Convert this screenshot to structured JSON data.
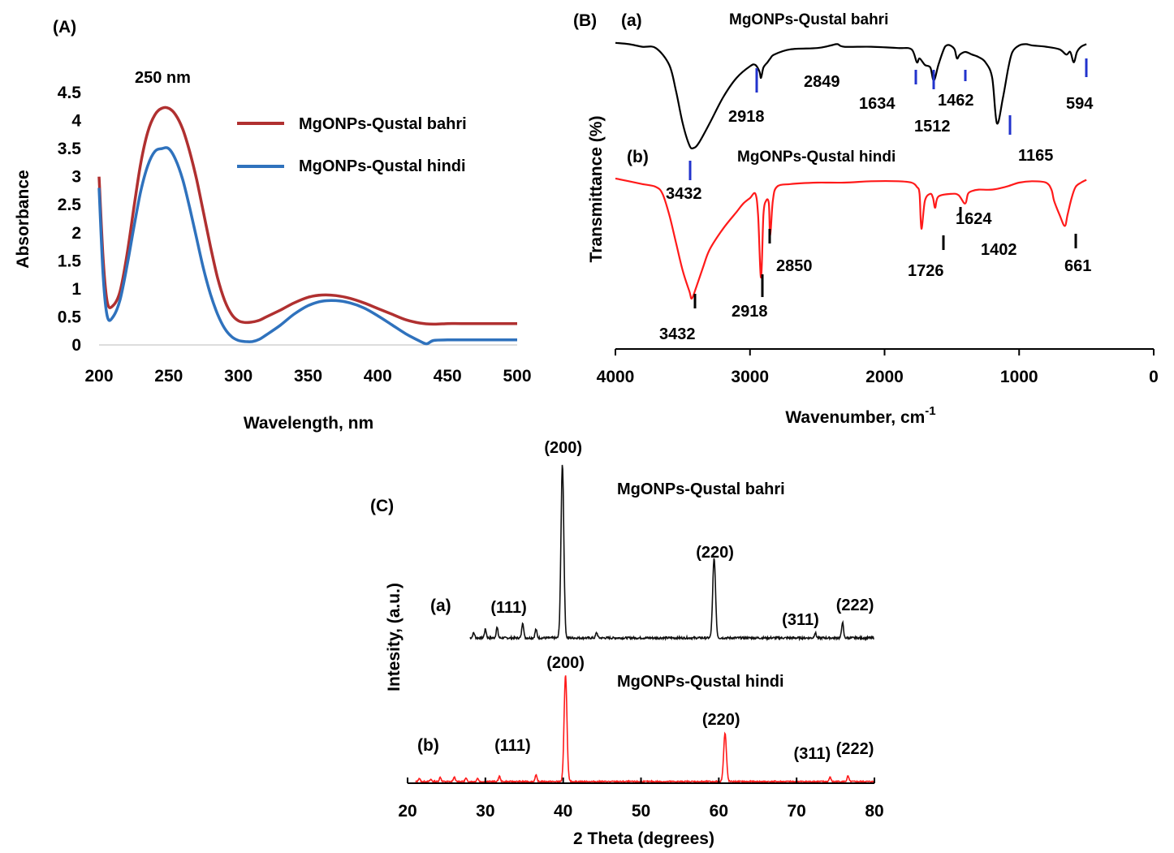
{
  "colors": {
    "uv_bahri": "#b03030",
    "uv_hindi": "#2f72bd",
    "ftir_a": "#000000",
    "ftir_b": "#ff1a1a",
    "ftir_marker_a": "#2233cc",
    "xrd_a": "#111111",
    "xrd_b": "#ff1a1a"
  },
  "chart_data": [
    {
      "panel": "(A)",
      "type": "line",
      "xlabel": "Wavelength, nm",
      "ylabel": "Absorbance",
      "xlim": [
        200,
        500
      ],
      "ylim": [
        0,
        4.5
      ],
      "x_ticks": [
        "200",
        "250",
        "300",
        "350",
        "400",
        "450",
        "500"
      ],
      "y_ticks": [
        "0",
        "0.5",
        "1",
        "1.5",
        "2",
        "2.5",
        "3",
        "3.5",
        "4",
        "4.5"
      ],
      "annotation": "250 nm",
      "legend_position": "top-right",
      "series": [
        {
          "name": "MgONPs-Qustal bahri",
          "x": [
            200,
            203,
            206,
            210,
            215,
            220,
            225,
            230,
            235,
            240,
            245,
            250,
            255,
            260,
            265,
            270,
            275,
            280,
            285,
            290,
            295,
            300,
            305,
            310,
            315,
            320,
            330,
            340,
            350,
            360,
            370,
            380,
            390,
            400,
            410,
            420,
            430,
            440,
            450,
            460,
            480,
            500
          ],
          "y": [
            3.0,
            1.5,
            0.75,
            0.7,
            0.95,
            1.6,
            2.45,
            3.25,
            3.8,
            4.1,
            4.22,
            4.22,
            4.1,
            3.85,
            3.45,
            2.95,
            2.35,
            1.75,
            1.2,
            0.8,
            0.55,
            0.43,
            0.4,
            0.41,
            0.44,
            0.5,
            0.62,
            0.75,
            0.85,
            0.89,
            0.88,
            0.83,
            0.75,
            0.65,
            0.55,
            0.45,
            0.39,
            0.37,
            0.38,
            0.38,
            0.38,
            0.38
          ]
        },
        {
          "name": "MgONPs-Qustal hindi",
          "x": [
            200,
            203,
            206,
            210,
            215,
            220,
            225,
            230,
            235,
            240,
            245,
            250,
            255,
            260,
            265,
            270,
            275,
            280,
            285,
            290,
            295,
            300,
            305,
            310,
            315,
            320,
            330,
            340,
            350,
            360,
            370,
            380,
            390,
            400,
            410,
            420,
            430,
            435,
            440,
            450,
            460,
            480,
            500
          ],
          "y": [
            2.8,
            1.2,
            0.5,
            0.5,
            0.8,
            1.4,
            2.1,
            2.75,
            3.2,
            3.45,
            3.5,
            3.5,
            3.3,
            2.95,
            2.45,
            1.9,
            1.35,
            0.9,
            0.55,
            0.3,
            0.15,
            0.08,
            0.06,
            0.06,
            0.1,
            0.18,
            0.35,
            0.55,
            0.7,
            0.78,
            0.79,
            0.75,
            0.66,
            0.52,
            0.36,
            0.2,
            0.07,
            0.02,
            0.08,
            0.09,
            0.09,
            0.09,
            0.09
          ]
        }
      ]
    },
    {
      "panel": "(B)",
      "type": "line",
      "xlabel": "Wavenumber, cm",
      "xlabel_superscript": "-1",
      "ylabel": "Transmittance (%)",
      "xlim": [
        4000,
        0
      ],
      "x_ticks": [
        "4000",
        "3000",
        "2000",
        "1000",
        "0"
      ],
      "series": [
        {
          "name": "MgONPs-Qustal bahri",
          "tag": "(a)",
          "x": [
            4000,
            3900,
            3800,
            3700,
            3600,
            3550,
            3500,
            3450,
            3420,
            3380,
            3300,
            3200,
            3100,
            3000,
            2960,
            2930,
            2918,
            2900,
            2870,
            2849,
            2820,
            2700,
            2500,
            2400,
            2350,
            2300,
            2100,
            1900,
            1800,
            1760,
            1740,
            1700,
            1660,
            1634,
            1600,
            1560,
            1540,
            1512,
            1480,
            1462,
            1440,
            1400,
            1350,
            1300,
            1250,
            1200,
            1165,
            1120,
            1080,
            1050,
            1000,
            950,
            900,
            800,
            700,
            650,
            620,
            594,
            570,
            540,
            500
          ],
          "y": [
            97,
            96,
            94,
            93,
            80,
            60,
            35,
            18,
            16,
            20,
            35,
            55,
            70,
            79,
            80,
            75,
            70,
            78,
            82,
            85,
            88,
            92,
            93,
            95,
            96,
            94,
            94,
            93,
            92,
            82,
            85,
            80,
            78,
            68,
            80,
            92,
            95,
            95,
            92,
            85,
            88,
            90,
            88,
            86,
            82,
            70,
            35,
            55,
            78,
            90,
            95,
            96,
            95,
            94,
            92,
            88,
            90,
            82,
            90,
            94,
            96
          ]
        },
        {
          "name": "MgONPs-Qustal hindi",
          "tag": "(b)",
          "x": [
            4000,
            3900,
            3800,
            3700,
            3650,
            3600,
            3550,
            3500,
            3450,
            3432,
            3400,
            3350,
            3300,
            3200,
            3100,
            3050,
            3000,
            2960,
            2940,
            2918,
            2900,
            2880,
            2860,
            2850,
            2830,
            2800,
            2700,
            2500,
            2300,
            2100,
            1900,
            1800,
            1760,
            1740,
            1726,
            1700,
            1660,
            1640,
            1624,
            1600,
            1500,
            1450,
            1402,
            1380,
            1350,
            1300,
            1200,
            1100,
            1000,
            900,
            800,
            760,
            740,
            700,
            661,
            640,
            610,
            580,
            540,
            500
          ],
          "y": [
            96,
            94,
            92,
            90,
            85,
            70,
            50,
            30,
            15,
            10,
            18,
            32,
            45,
            60,
            72,
            78,
            82,
            85,
            70,
            25,
            70,
            80,
            78,
            55,
            80,
            90,
            92,
            93,
            93,
            94,
            94,
            93,
            90,
            85,
            60,
            80,
            85,
            82,
            75,
            83,
            85,
            84,
            78,
            85,
            87,
            88,
            88,
            90,
            93,
            94,
            93,
            88,
            80,
            70,
            62,
            70,
            82,
            90,
            93,
            95
          ]
        }
      ],
      "peaks_a": [
        "3432",
        "2918",
        "2849",
        "1634",
        "1512",
        "1462",
        "1165",
        "594"
      ],
      "peaks_b": [
        "3432",
        "2918",
        "2850",
        "1726",
        "1624",
        "1402",
        "661"
      ]
    },
    {
      "panel": "(C)",
      "type": "line",
      "xlabel": "2 Theta (degrees)",
      "ylabel": "Intesity, (a.u.)",
      "xlim": [
        20,
        80
      ],
      "x_ticks": [
        "20",
        "30",
        "40",
        "50",
        "60",
        "70",
        "80"
      ],
      "series": [
        {
          "name": "MgONPs-Qustal bahri",
          "tag": "(a)",
          "peaks": [
            {
              "x": 22.0,
              "h": 0.04
            },
            {
              "x": 23.5,
              "h": 0.03
            },
            {
              "x": 26.5,
              "h": 0.04
            },
            {
              "x": 28.5,
              "h": 0.03
            },
            {
              "x": 30.0,
              "h": 0.05
            },
            {
              "x": 31.5,
              "h": 0.06
            },
            {
              "x": 34.8,
              "h": 0.09
            },
            {
              "x": 36.5,
              "h": 0.05
            },
            {
              "x": 39.9,
              "h": 1.0
            },
            {
              "x": 44.3,
              "h": 0.03
            },
            {
              "x": 59.4,
              "h": 0.46
            },
            {
              "x": 72.4,
              "h": 0.03
            },
            {
              "x": 75.9,
              "h": 0.09
            }
          ],
          "hkl": [
            {
              "x": 33,
              "label": "(111)"
            },
            {
              "x": 40,
              "label": "(200)"
            },
            {
              "x": 59.5,
              "label": "(220)"
            },
            {
              "x": 70.5,
              "label": "(311)"
            },
            {
              "x": 77.5,
              "label": "(222)"
            }
          ]
        },
        {
          "name": "MgONPs-Qustal hindi",
          "tag": "(b)",
          "peaks": [
            {
              "x": 21.5,
              "h": 0.03
            },
            {
              "x": 23.0,
              "h": 0.02
            },
            {
              "x": 24.2,
              "h": 0.04
            },
            {
              "x": 26.0,
              "h": 0.04
            },
            {
              "x": 27.5,
              "h": 0.03
            },
            {
              "x": 29.0,
              "h": 0.03
            },
            {
              "x": 31.8,
              "h": 0.05
            },
            {
              "x": 36.5,
              "h": 0.06
            },
            {
              "x": 40.3,
              "h": 1.0
            },
            {
              "x": 60.8,
              "h": 0.45
            },
            {
              "x": 74.3,
              "h": 0.04
            },
            {
              "x": 76.6,
              "h": 0.05
            }
          ],
          "hkl": [
            {
              "x": 33.5,
              "label": "(111)"
            },
            {
              "x": 40.3,
              "label": "(200)"
            },
            {
              "x": 60.3,
              "label": "(220)"
            },
            {
              "x": 72.0,
              "label": "(311)"
            },
            {
              "x": 77.5,
              "label": "(222)"
            }
          ]
        }
      ]
    }
  ]
}
